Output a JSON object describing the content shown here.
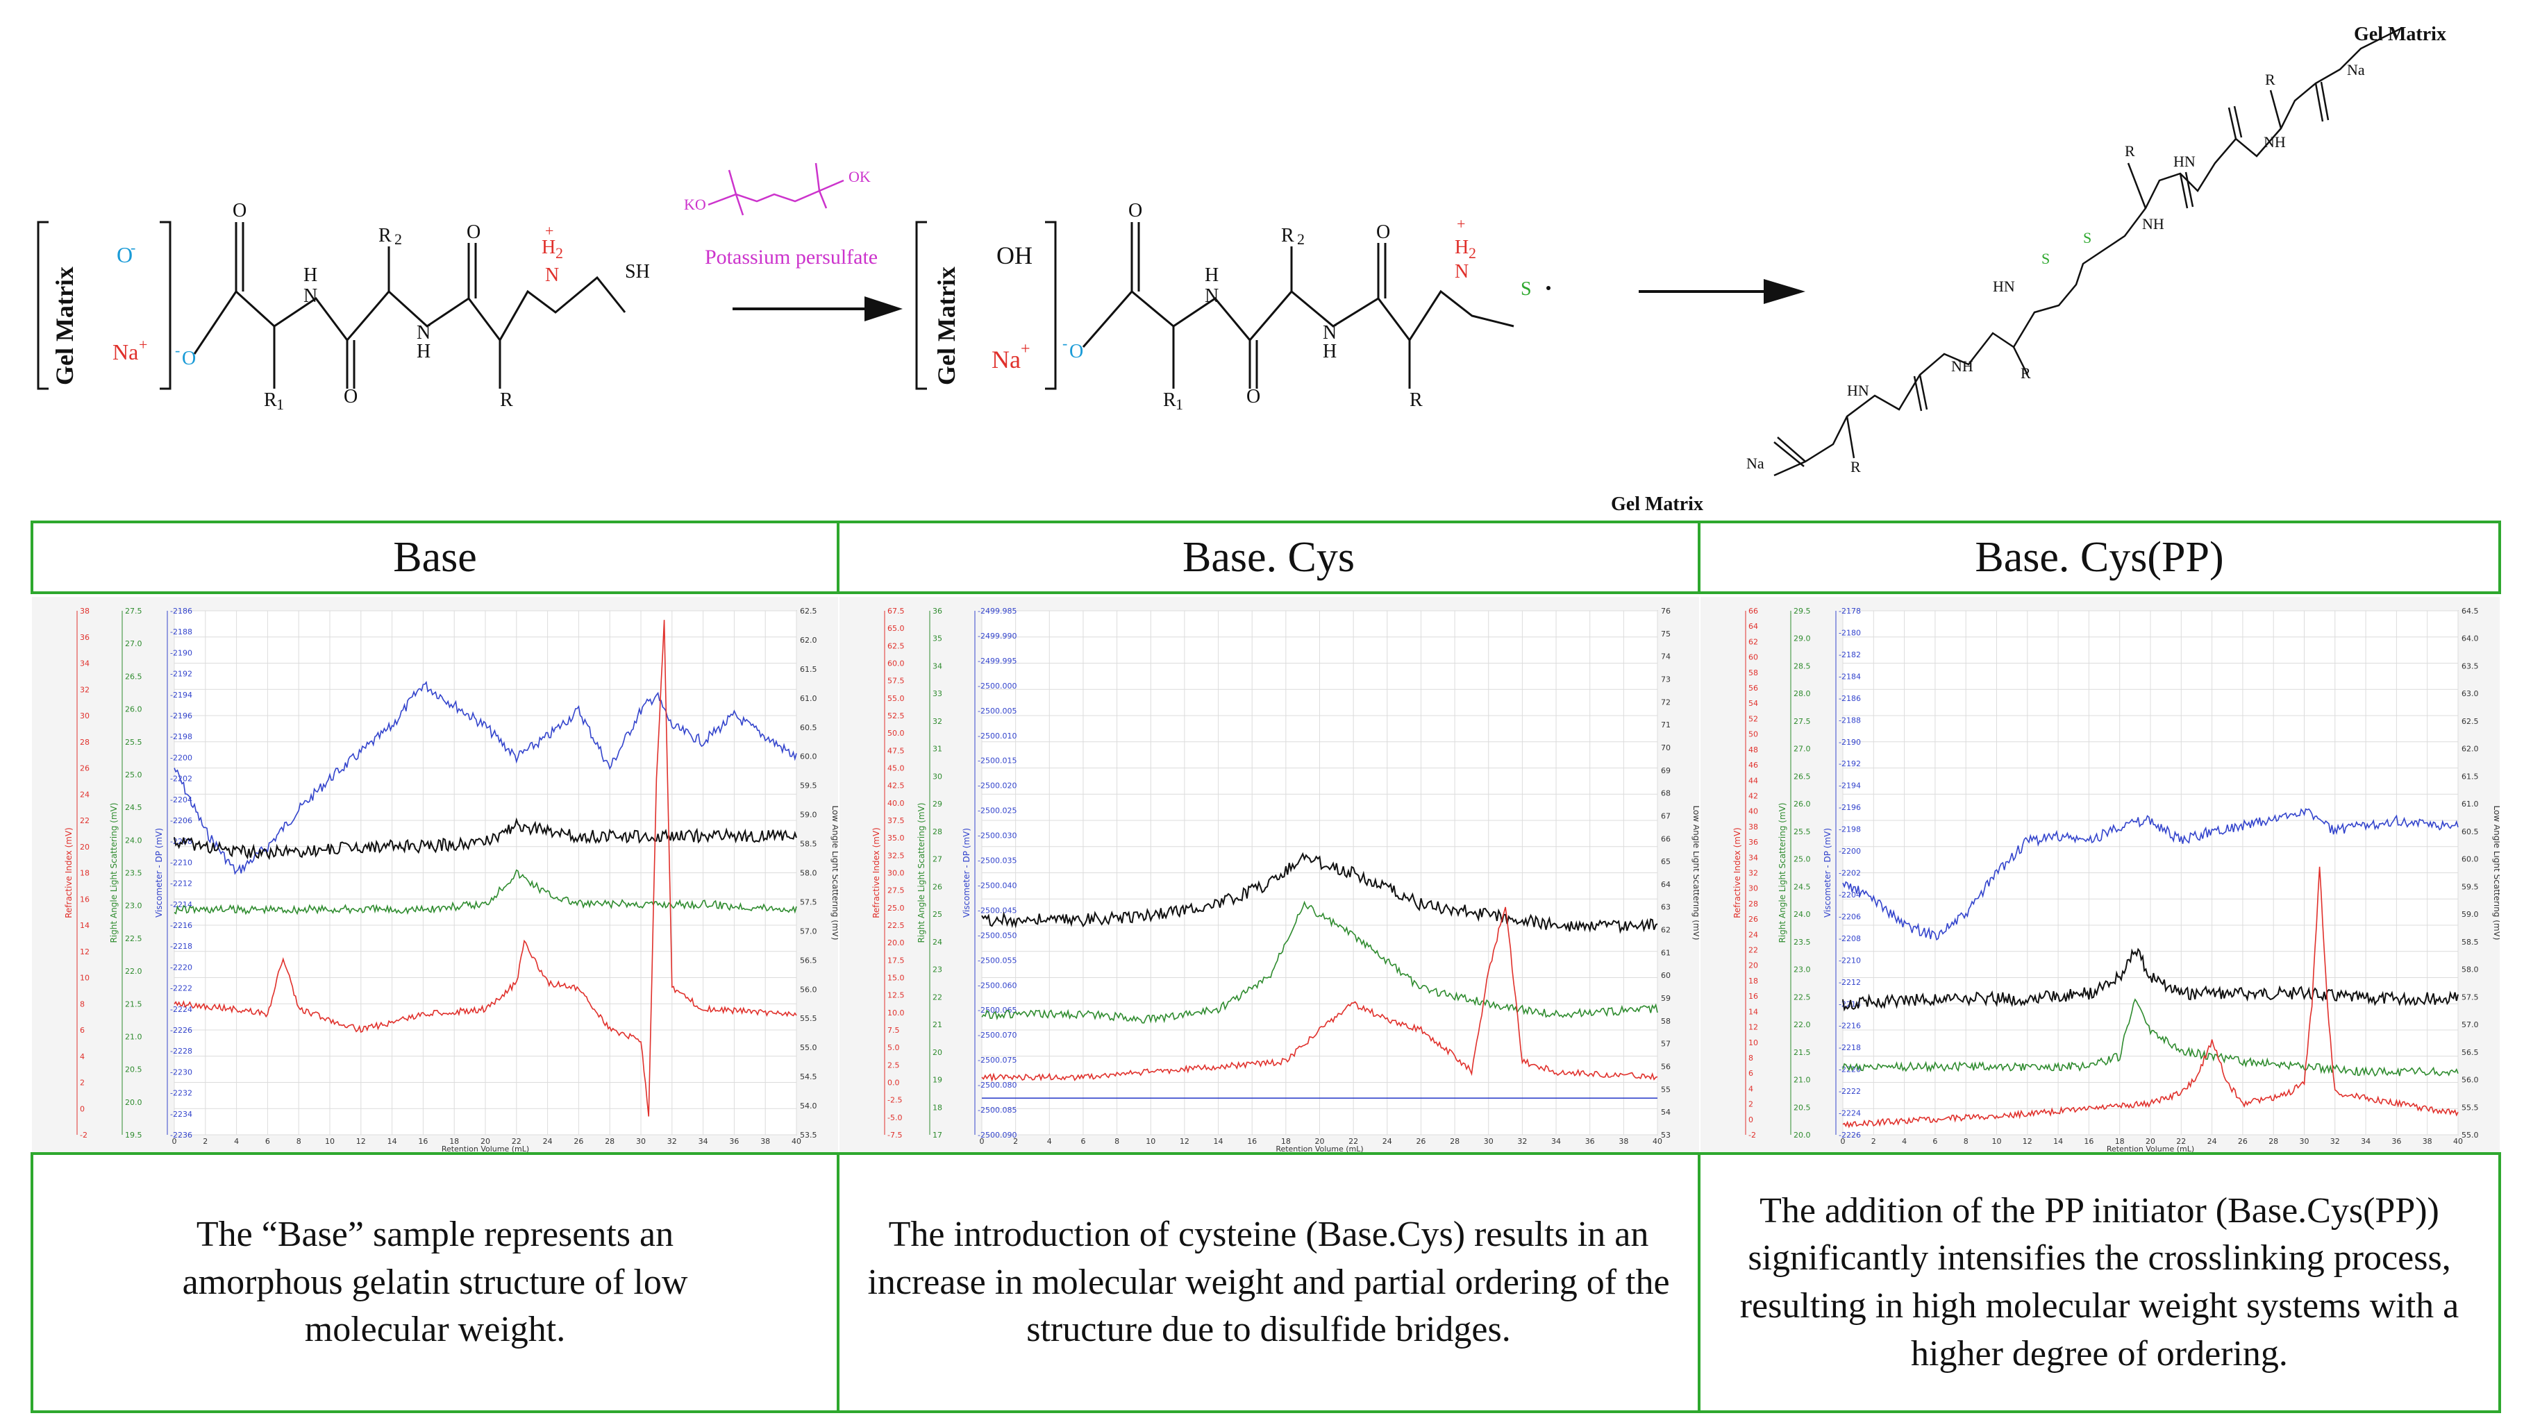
{
  "scheme": {
    "gel_matrix": "Gel Matrix",
    "o_minus": "O",
    "na_plus": "Na",
    "oh": "OH",
    "o_label": "O",
    "h_label": "H",
    "n_label": "N",
    "nh_label": "NH",
    "hn_label": "HN",
    "h2_label": "H",
    "r_label": "R",
    "r1_label": "R",
    "r2_label": "R",
    "ri_label": "R",
    "sh_label": "SH",
    "s_label": "S",
    "na_bottom": "Na",
    "na_top": "Na",
    "ko": "KO",
    "ok": "OK",
    "reagent_label": "Potassium persulfate",
    "colors": {
      "reagent": "#cc33cc",
      "oxygen": "#1a9bd7",
      "sodium": "#e0302b",
      "sulfur": "#2ea82e",
      "ammonium": "#e0302b"
    }
  },
  "columns": [
    {
      "header": "Base",
      "description": "The “Base” sample represents an amorphous gelatin structure of low molecular weight."
    },
    {
      "header": "Base. Cys",
      "description": "The introduction of cysteine (Base.Cys) results in an increase in molecular weight and partial ordering of the structure due to disulfide bridges."
    },
    {
      "header": "Base. Cys(PP)",
      "description": "The addition of the PP initiator (Base.Cys(PP)) significantly intensifies the crosslinking process, resulting in high molecular weight systems with a higher degree of ordering."
    }
  ],
  "chart_data": [
    {
      "type": "line",
      "title": "Base",
      "xlabel": "Retention Volume (mL)",
      "xlim": [
        0,
        40
      ],
      "x_ticks": [
        "0",
        "2",
        "4",
        "6",
        "8",
        "10",
        "12",
        "14",
        "16",
        "18",
        "20",
        "22",
        "24",
        "26",
        "28",
        "30",
        "32",
        "34",
        "36",
        "38",
        "40"
      ],
      "left_axes": [
        {
          "label": "Refractive Index (mV)",
          "color": "#e0302b",
          "ticks": [
            "-2",
            "0",
            "2",
            "4",
            "6",
            "8",
            "10",
            "12",
            "14",
            "16",
            "18",
            "20",
            "22",
            "24",
            "26",
            "28",
            "30",
            "32",
            "34",
            "36",
            "38"
          ]
        },
        {
          "label": "Right Angle Light Scattering (mV)",
          "color": "#2e8b2e",
          "ticks": [
            "19.5",
            "20.0",
            "20.5",
            "21.0",
            "21.5",
            "22.0",
            "22.5",
            "23.0",
            "23.5",
            "24.0",
            "24.5",
            "25.0",
            "25.5",
            "26.0",
            "26.5",
            "27.0",
            "27.5"
          ]
        },
        {
          "label": "Viscometer - DP (mV)",
          "color": "#3344cc",
          "ticks": [
            "-2236",
            "-2234",
            "-2232",
            "-2230",
            "-2228",
            "-2226",
            "-2224",
            "-2222",
            "-2220",
            "-2218",
            "-2216",
            "-2214",
            "-2212",
            "-2210",
            "-2208",
            "-2206",
            "-2204",
            "-2202",
            "-2200",
            "-2198",
            "-2196",
            "-2194",
            "-2192",
            "-2190",
            "-2188",
            "-2186"
          ]
        }
      ],
      "right_axis": {
        "label": "Low Angle Light Scattering (mV)",
        "ticks": [
          "53.5",
          "54.0",
          "54.5",
          "55.0",
          "55.5",
          "56.0",
          "56.5",
          "57.0",
          "57.5",
          "58.0",
          "58.5",
          "59.0",
          "59.5",
          "60.0",
          "60.5",
          "61.0",
          "61.5",
          "62.0",
          "62.5"
        ]
      },
      "series": [
        {
          "name": "Viscometer DP",
          "color": "#3344cc",
          "x": [
            0,
            2,
            4,
            6,
            8,
            10,
            12,
            14,
            16,
            18,
            20,
            22,
            24,
            26,
            28,
            30,
            31,
            32,
            34,
            36,
            38,
            40
          ],
          "y": [
            0.3,
            0.42,
            0.5,
            0.45,
            0.38,
            0.32,
            0.27,
            0.22,
            0.14,
            0.18,
            0.22,
            0.28,
            0.24,
            0.19,
            0.3,
            0.19,
            0.16,
            0.22,
            0.25,
            0.2,
            0.24,
            0.28
          ]
        },
        {
          "name": "Low Angle Light Scattering",
          "color": "#111111",
          "x": [
            0,
            4,
            8,
            12,
            16,
            20,
            22,
            24,
            26,
            30,
            34,
            40
          ],
          "y": [
            0.44,
            0.46,
            0.46,
            0.45,
            0.45,
            0.44,
            0.41,
            0.42,
            0.43,
            0.43,
            0.43,
            0.43
          ]
        },
        {
          "name": "Right Angle Light Scattering",
          "color": "#2e8b2e",
          "x": [
            0,
            4,
            8,
            12,
            16,
            20,
            22,
            24,
            26,
            30,
            34,
            40
          ],
          "y": [
            0.57,
            0.57,
            0.57,
            0.57,
            0.57,
            0.56,
            0.5,
            0.54,
            0.56,
            0.56,
            0.56,
            0.57
          ]
        },
        {
          "name": "Refractive Index",
          "color": "#e0302b",
          "x": [
            0,
            4,
            6,
            7,
            8,
            12,
            16,
            20,
            22,
            22.5,
            24,
            26,
            28,
            30,
            30.5,
            31,
            31.5,
            32,
            34,
            40
          ],
          "y": [
            0.75,
            0.76,
            0.77,
            0.66,
            0.76,
            0.8,
            0.77,
            0.76,
            0.71,
            0.63,
            0.71,
            0.72,
            0.8,
            0.82,
            0.96,
            0.32,
            0.02,
            0.72,
            0.76,
            0.77
          ]
        }
      ]
    },
    {
      "type": "line",
      "title": "Base. Cys",
      "xlabel": "Retention Volume (mL)",
      "xlim": [
        0,
        40
      ],
      "x_ticks": [
        "0",
        "2",
        "4",
        "6",
        "8",
        "10",
        "12",
        "14",
        "16",
        "18",
        "20",
        "22",
        "24",
        "26",
        "28",
        "30",
        "32",
        "34",
        "36",
        "38",
        "40"
      ],
      "left_axes": [
        {
          "label": "Refractive Index (mV)",
          "color": "#e0302b",
          "ticks": [
            "-7.5",
            "-5.0",
            "-2.5",
            "0.0",
            "2.5",
            "5.0",
            "7.5",
            "10.0",
            "12.5",
            "15.0",
            "17.5",
            "20.0",
            "22.5",
            "25.0",
            "27.5",
            "30.0",
            "32.5",
            "35.0",
            "37.5",
            "40.0",
            "42.5",
            "45.0",
            "47.5",
            "50.0",
            "52.5",
            "55.0",
            "57.5",
            "60.0",
            "62.5",
            "65.0",
            "67.5"
          ]
        },
        {
          "label": "Right Angle Light Scattering (mV)",
          "color": "#2e8b2e",
          "ticks": [
            "17",
            "18",
            "19",
            "20",
            "21",
            "22",
            "23",
            "24",
            "25",
            "26",
            "27",
            "28",
            "29",
            "30",
            "31",
            "32",
            "33",
            "34",
            "35",
            "36"
          ]
        },
        {
          "label": "Viscometer - DP (mV)",
          "color": "#3344cc",
          "ticks": [
            "-2500.090",
            "-2500.085",
            "-2500.080",
            "-2500.075",
            "-2500.070",
            "-2500.065",
            "-2500.060",
            "-2500.055",
            "-2500.050",
            "-2500.045",
            "-2500.040",
            "-2500.035",
            "-2500.030",
            "-2500.025",
            "-2500.020",
            "-2500.015",
            "-2500.010",
            "-2500.005",
            "-2500.000",
            "-2499.995",
            "-2499.990",
            "-2499.985"
          ]
        }
      ],
      "right_axis": {
        "label": "Low Angle Light Scattering (mV)",
        "ticks": [
          "53",
          "54",
          "55",
          "56",
          "57",
          "58",
          "59",
          "60",
          "61",
          "62",
          "63",
          "64",
          "65",
          "66",
          "67",
          "68",
          "69",
          "70",
          "71",
          "72",
          "73",
          "74",
          "75",
          "76"
        ]
      },
      "series": [
        {
          "name": "Viscometer DP",
          "color": "#3344cc",
          "x": [
            0,
            40
          ],
          "y": [
            0.93,
            0.93
          ]
        },
        {
          "name": "Low Angle Light Scattering",
          "color": "#111111",
          "x": [
            0,
            6,
            10,
            14,
            17,
            19,
            22,
            26,
            30,
            34,
            40
          ],
          "y": [
            0.59,
            0.59,
            0.58,
            0.56,
            0.52,
            0.47,
            0.5,
            0.56,
            0.58,
            0.6,
            0.6
          ]
        },
        {
          "name": "Right Angle Light Scattering",
          "color": "#2e8b2e",
          "x": [
            0,
            6,
            10,
            14,
            17,
            19,
            22,
            26,
            30,
            34,
            40
          ],
          "y": [
            0.77,
            0.77,
            0.78,
            0.76,
            0.7,
            0.56,
            0.62,
            0.72,
            0.75,
            0.77,
            0.76
          ]
        },
        {
          "name": "Refractive Index",
          "color": "#e0302b",
          "x": [
            0,
            6,
            10,
            14,
            18,
            20,
            22,
            24,
            26,
            28,
            29,
            30,
            31,
            32,
            34,
            40
          ],
          "y": [
            0.89,
            0.89,
            0.88,
            0.87,
            0.86,
            0.8,
            0.75,
            0.78,
            0.8,
            0.85,
            0.88,
            0.69,
            0.56,
            0.86,
            0.88,
            0.89
          ]
        }
      ]
    },
    {
      "type": "line",
      "title": "Base. Cys(PP)",
      "xlabel": "Retention Volume (mL)",
      "xlim": [
        0,
        40
      ],
      "x_ticks": [
        "0",
        "2",
        "4",
        "6",
        "8",
        "10",
        "12",
        "14",
        "16",
        "18",
        "20",
        "22",
        "24",
        "26",
        "28",
        "30",
        "32",
        "34",
        "36",
        "38",
        "40"
      ],
      "left_axes": [
        {
          "label": "Refractive Index (mV)",
          "color": "#e0302b",
          "ticks": [
            "-2",
            "0",
            "2",
            "4",
            "6",
            "8",
            "10",
            "12",
            "14",
            "16",
            "18",
            "20",
            "22",
            "24",
            "26",
            "28",
            "30",
            "32",
            "34",
            "36",
            "38",
            "40",
            "42",
            "44",
            "46",
            "48",
            "50",
            "52",
            "54",
            "56",
            "58",
            "60",
            "62",
            "64",
            "66"
          ]
        },
        {
          "label": "Right Angle Light Scattering (mV)",
          "color": "#2e8b2e",
          "ticks": [
            "20.0",
            "20.5",
            "21.0",
            "21.5",
            "22.0",
            "22.5",
            "23.0",
            "23.5",
            "24.0",
            "24.5",
            "25.0",
            "25.5",
            "26.0",
            "26.5",
            "27.0",
            "27.5",
            "28.0",
            "28.5",
            "29.0",
            "29.5"
          ]
        },
        {
          "label": "Viscometer - DP (mV)",
          "color": "#3344cc",
          "ticks": [
            "-2226",
            "-2224",
            "-2222",
            "-2220",
            "-2218",
            "-2216",
            "-2214",
            "-2212",
            "-2210",
            "-2208",
            "-2206",
            "-2204",
            "-2202",
            "-2200",
            "-2198",
            "-2196",
            "-2194",
            "-2192",
            "-2190",
            "-2188",
            "-2186",
            "-2184",
            "-2182",
            "-2180",
            "-2178"
          ]
        }
      ],
      "right_axis": {
        "label": "Low Angle Light Scattering (mV)",
        "ticks": [
          "55.0",
          "55.5",
          "56.0",
          "56.5",
          "57.0",
          "57.5",
          "58.0",
          "58.5",
          "59.0",
          "59.5",
          "60.0",
          "60.5",
          "61.0",
          "61.5",
          "62.0",
          "62.5",
          "63.0",
          "63.5",
          "64.0",
          "64.5"
        ]
      },
      "series": [
        {
          "name": "Viscometer DP",
          "color": "#3344cc",
          "x": [
            0,
            2,
            4,
            6,
            8,
            10,
            12,
            14,
            16,
            18,
            20,
            22,
            24,
            26,
            28,
            30,
            32,
            34,
            36,
            38,
            40
          ],
          "y": [
            0.52,
            0.55,
            0.6,
            0.62,
            0.58,
            0.5,
            0.44,
            0.43,
            0.44,
            0.41,
            0.4,
            0.44,
            0.42,
            0.41,
            0.4,
            0.38,
            0.42,
            0.41,
            0.4,
            0.41,
            0.41
          ]
        },
        {
          "name": "Low Angle Light Scattering",
          "color": "#111111",
          "x": [
            0,
            6,
            12,
            16,
            18,
            19,
            20,
            22,
            26,
            30,
            34,
            40
          ],
          "y": [
            0.75,
            0.74,
            0.74,
            0.73,
            0.7,
            0.64,
            0.7,
            0.73,
            0.73,
            0.73,
            0.74,
            0.74
          ]
        },
        {
          "name": "Right Angle Light Scattering",
          "color": "#2e8b2e",
          "x": [
            0,
            6,
            12,
            16,
            18,
            19,
            20,
            22,
            26,
            30,
            34,
            40
          ],
          "y": [
            0.87,
            0.87,
            0.87,
            0.87,
            0.85,
            0.74,
            0.8,
            0.84,
            0.86,
            0.87,
            0.88,
            0.88
          ]
        },
        {
          "name": "Refractive Index",
          "color": "#e0302b",
          "x": [
            0,
            6,
            12,
            16,
            20,
            22,
            23,
            24,
            25,
            26,
            28,
            29,
            30,
            30.5,
            31,
            31.5,
            32,
            34,
            36,
            40
          ],
          "y": [
            0.98,
            0.97,
            0.96,
            0.95,
            0.94,
            0.92,
            0.89,
            0.82,
            0.9,
            0.94,
            0.93,
            0.92,
            0.9,
            0.75,
            0.49,
            0.75,
            0.92,
            0.93,
            0.94,
            0.96
          ]
        }
      ]
    }
  ]
}
